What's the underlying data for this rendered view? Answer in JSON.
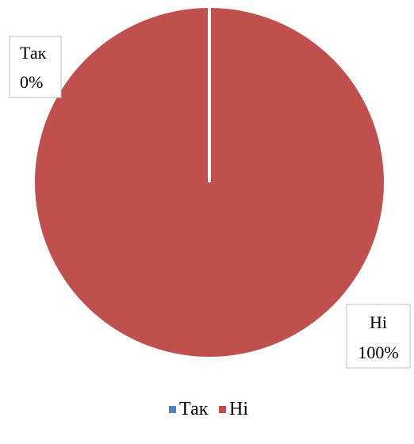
{
  "chart_data": {
    "type": "pie",
    "categories": [
      "Так",
      "Ні"
    ],
    "values": [
      0,
      100
    ],
    "data_labels": [
      {
        "category": "Так",
        "percent": "0%"
      },
      {
        "category": "Ні",
        "percent": "100%"
      }
    ],
    "colors": [
      "#4F81BD",
      "#C0504D"
    ],
    "legend": {
      "position": "bottom",
      "items": [
        "Так",
        "Ні"
      ]
    },
    "title": ""
  }
}
